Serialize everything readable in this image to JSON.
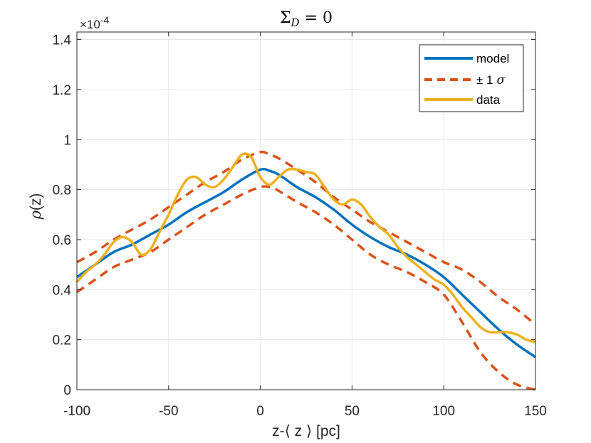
{
  "chart_data": {
    "type": "line",
    "title": "Σ",
    "title_sub": "D",
    "title_rest": " = 0",
    "xlabel": "z-⟨ z ⟩   [pc]",
    "ylabel_italic": "ρ",
    "ylabel_rest": "(z)",
    "y_exponent": "×10",
    "y_exponent_power": "-4",
    "xlim": [
      -100,
      150
    ],
    "ylim": [
      0,
      1.43
    ],
    "xticks": [
      -100,
      -50,
      0,
      50,
      100,
      150
    ],
    "xtick_labels": [
      "-100",
      "-50",
      "0",
      "50",
      "100",
      "150"
    ],
    "yticks": [
      0,
      0.2,
      0.4,
      0.6,
      0.8,
      1.0,
      1.2,
      1.4
    ],
    "ytick_labels": [
      "0",
      "0.2",
      "0.4",
      "0.6",
      "0.8",
      "1",
      "1.2",
      "1.4"
    ],
    "grid": true,
    "legend_position": "top-right",
    "series": [
      {
        "name": "model",
        "color": "#0072BD",
        "style": "solid",
        "x": [
          -100,
          -90,
          -80,
          -70,
          -60,
          -50,
          -40,
          -30,
          -20,
          -10,
          0,
          5,
          10,
          20,
          30,
          40,
          50,
          60,
          70,
          80,
          90,
          100,
          110,
          120,
          130,
          140,
          150
        ],
        "y": [
          0.45,
          0.5,
          0.55,
          0.58,
          0.62,
          0.66,
          0.71,
          0.75,
          0.79,
          0.84,
          0.88,
          0.875,
          0.86,
          0.81,
          0.77,
          0.72,
          0.66,
          0.61,
          0.57,
          0.54,
          0.5,
          0.45,
          0.38,
          0.31,
          0.24,
          0.18,
          0.13
        ]
      },
      {
        "name": "± 1",
        "name_italic": "σ",
        "color": "#D95319",
        "style": "dashed",
        "x": [
          -100,
          -90,
          -80,
          -70,
          -60,
          -50,
          -40,
          -30,
          -20,
          -10,
          0,
          5,
          10,
          20,
          30,
          40,
          50,
          60,
          70,
          80,
          90,
          100,
          110,
          120,
          130,
          140,
          150
        ],
        "y": [
          0.51,
          0.55,
          0.6,
          0.64,
          0.68,
          0.73,
          0.78,
          0.83,
          0.87,
          0.92,
          0.95,
          0.94,
          0.925,
          0.88,
          0.83,
          0.77,
          0.72,
          0.67,
          0.63,
          0.59,
          0.55,
          0.51,
          0.48,
          0.43,
          0.37,
          0.32,
          0.26
        ]
      },
      {
        "name": "",
        "color": "#D95319",
        "style": "dashed",
        "x": [
          -100,
          -90,
          -80,
          -70,
          -60,
          -50,
          -40,
          -30,
          -20,
          -10,
          0,
          5,
          10,
          20,
          30,
          40,
          50,
          60,
          70,
          80,
          90,
          100,
          110,
          120,
          130,
          140,
          150
        ],
        "y": [
          0.39,
          0.44,
          0.49,
          0.52,
          0.55,
          0.6,
          0.65,
          0.7,
          0.74,
          0.78,
          0.81,
          0.81,
          0.795,
          0.75,
          0.71,
          0.66,
          0.6,
          0.54,
          0.5,
          0.47,
          0.43,
          0.38,
          0.27,
          0.15,
          0.07,
          0.02,
          0.0
        ]
      },
      {
        "name": "data",
        "color": "#EDB120",
        "style": "solid",
        "x": [
          -100,
          -95,
          -90,
          -85,
          -80,
          -75,
          -70,
          -65,
          -60,
          -55,
          -50,
          -45,
          -40,
          -35,
          -30,
          -25,
          -20,
          -15,
          -10,
          -5,
          0,
          5,
          10,
          15,
          20,
          25,
          30,
          35,
          40,
          45,
          50,
          55,
          60,
          65,
          70,
          75,
          80,
          85,
          90,
          95,
          100,
          105,
          110,
          115,
          120,
          125,
          130,
          135,
          140,
          145,
          150
        ],
        "y": [
          0.43,
          0.47,
          0.5,
          0.54,
          0.59,
          0.61,
          0.59,
          0.54,
          0.56,
          0.63,
          0.7,
          0.78,
          0.84,
          0.85,
          0.82,
          0.81,
          0.84,
          0.89,
          0.94,
          0.93,
          0.85,
          0.82,
          0.85,
          0.88,
          0.88,
          0.87,
          0.86,
          0.81,
          0.76,
          0.74,
          0.76,
          0.74,
          0.69,
          0.65,
          0.62,
          0.57,
          0.53,
          0.5,
          0.47,
          0.44,
          0.42,
          0.38,
          0.33,
          0.29,
          0.25,
          0.23,
          0.23,
          0.23,
          0.22,
          0.2,
          0.19
        ]
      }
    ],
    "legend": [
      {
        "label": "model",
        "color": "#0072BD",
        "style": "solid"
      },
      {
        "label": "± 1",
        "label_italic": "σ",
        "color": "#D95319",
        "style": "dashed"
      },
      {
        "label": "data",
        "color": "#EDB120",
        "style": "solid"
      }
    ]
  }
}
